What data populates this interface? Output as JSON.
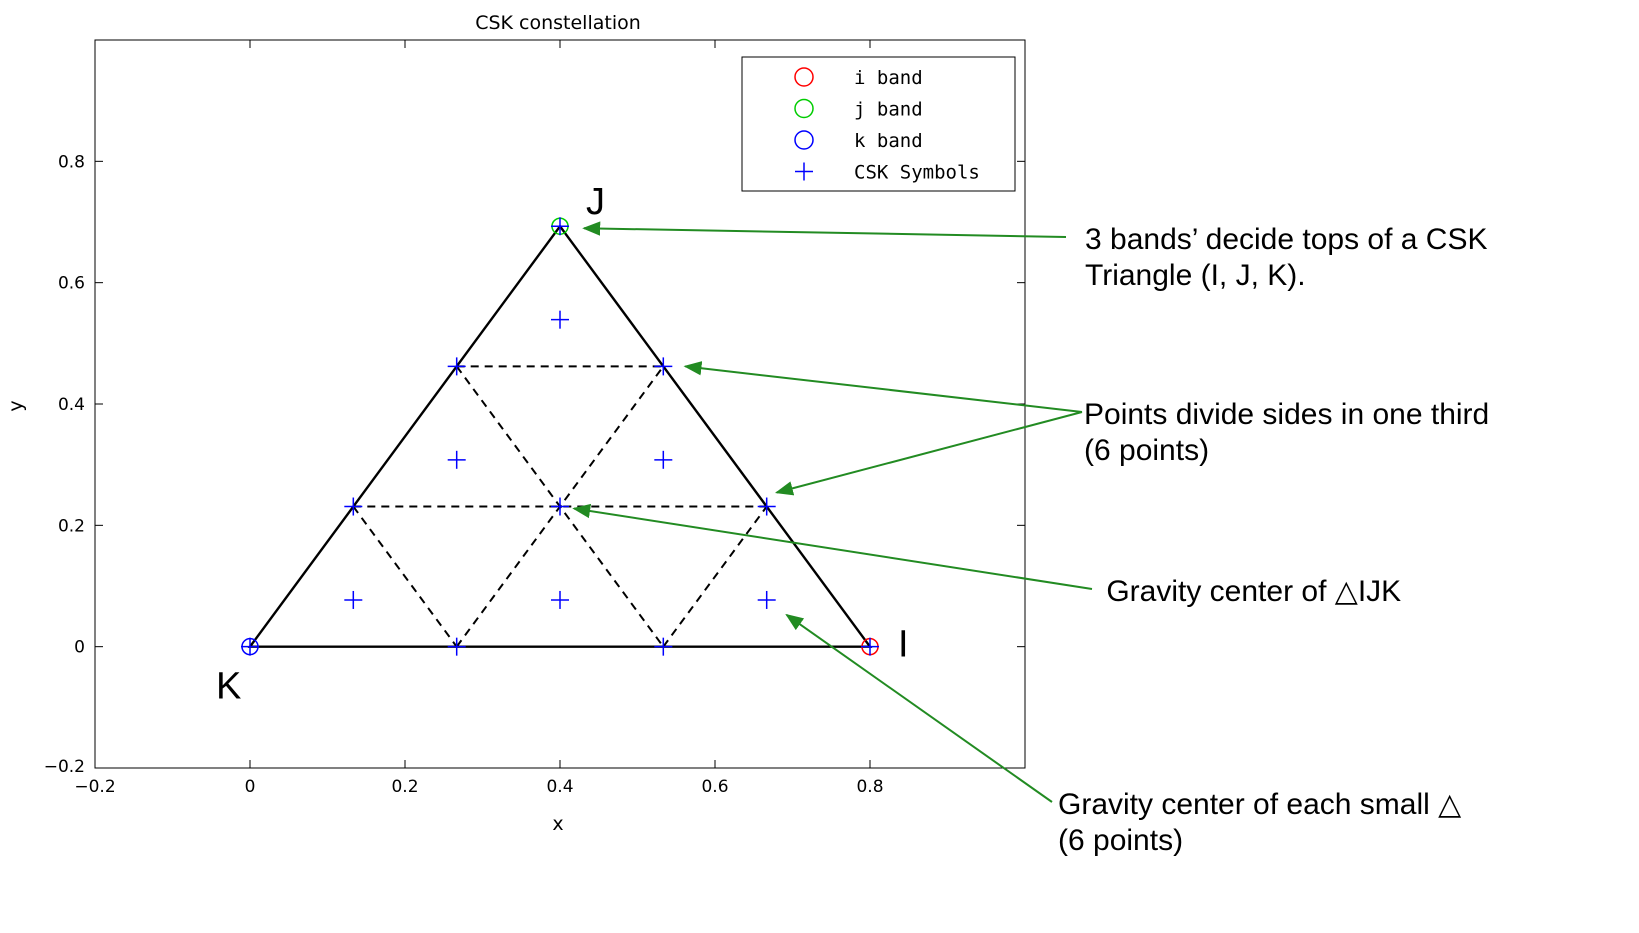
{
  "chart_data": {
    "type": "scatter",
    "title": "CSK constellation",
    "xlabel": "x",
    "ylabel": "y",
    "xlim": [
      -0.2,
      1.0
    ],
    "ylim": [
      -0.2,
      1.0
    ],
    "xticks": [
      "−0.2",
      "0",
      "0.2",
      "0.4",
      "0.6",
      "0.8"
    ],
    "xtick_values": [
      -0.2,
      0,
      0.2,
      0.4,
      0.6,
      0.8
    ],
    "yticks": [
      "−0.2",
      "0",
      "0.2",
      "0.4",
      "0.6",
      "0.8"
    ],
    "ytick_values": [
      -0.2,
      0,
      0.2,
      0.4,
      0.6,
      0.8
    ],
    "grid": false,
    "legend_position": "top-right",
    "series": [
      {
        "name": "i band",
        "marker": "circle",
        "color": "#ff0000",
        "points": [
          [
            0.8,
            0.0
          ]
        ]
      },
      {
        "name": "j band",
        "marker": "circle",
        "color": "#00cc00",
        "points": [
          [
            0.4,
            0.693
          ]
        ]
      },
      {
        "name": "k band",
        "marker": "circle",
        "color": "#0000ff",
        "points": [
          [
            0.0,
            0.0
          ]
        ]
      },
      {
        "name": "CSK Symbols",
        "marker": "plus",
        "color": "#0000ff",
        "points": [
          [
            0.0,
            0.0
          ],
          [
            0.8,
            0.0
          ],
          [
            0.4,
            0.693
          ],
          [
            0.2667,
            0.0
          ],
          [
            0.5333,
            0.0
          ],
          [
            0.1333,
            0.231
          ],
          [
            0.6667,
            0.231
          ],
          [
            0.2667,
            0.462
          ],
          [
            0.5333,
            0.462
          ],
          [
            0.4,
            0.231
          ],
          [
            0.1333,
            0.077
          ],
          [
            0.4,
            0.077
          ],
          [
            0.6667,
            0.077
          ],
          [
            0.2667,
            0.308
          ],
          [
            0.5333,
            0.308
          ],
          [
            0.4,
            0.539
          ]
        ]
      }
    ],
    "triangle": [
      [
        0.0,
        0.0
      ],
      [
        0.8,
        0.0
      ],
      [
        0.4,
        0.693
      ]
    ],
    "dashed_lines": [
      [
        [
          0.2667,
          0.462
        ],
        [
          0.5333,
          0.462
        ]
      ],
      [
        [
          0.1333,
          0.231
        ],
        [
          0.6667,
          0.231
        ]
      ],
      [
        [
          0.2667,
          0.0
        ],
        [
          0.5333,
          0.462
        ]
      ],
      [
        [
          0.5333,
          0.0
        ],
        [
          0.6667,
          0.231
        ]
      ],
      [
        [
          0.1333,
          0.231
        ],
        [
          0.2667,
          0.0
        ]
      ],
      [
        [
          0.2667,
          0.462
        ],
        [
          0.5333,
          0.0
        ]
      ],
      [
        [
          0.5333,
          0.462
        ],
        [
          0.6667,
          0.231
        ]
      ]
    ],
    "vertex_labels": [
      {
        "text": "J",
        "at": [
          0.4,
          0.693
        ]
      },
      {
        "text": "I",
        "at": [
          0.8,
          0.0
        ]
      },
      {
        "text": "K",
        "at": [
          0.0,
          0.0
        ]
      }
    ]
  },
  "annotations": [
    {
      "lines": [
        "3 bands’ decide tops of a CSK",
        "Triangle (I, J, K)."
      ],
      "targets": [
        [
          0.4,
          0.693
        ]
      ]
    },
    {
      "lines": [
        "Points divide sides in one third",
        "(6 points)"
      ],
      "targets": [
        [
          0.5333,
          0.462
        ],
        [
          0.6667,
          0.231
        ]
      ]
    },
    {
      "lines": [
        " Gravity center of △IJK"
      ],
      "targets": [
        [
          0.4,
          0.231
        ]
      ]
    },
    {
      "lines": [
        "Gravity center of each small △",
        "(6 points)"
      ],
      "targets": [
        [
          0.6667,
          0.077
        ]
      ]
    }
  ],
  "colors": {
    "arrow": "#228b22",
    "axis": "#000000"
  }
}
